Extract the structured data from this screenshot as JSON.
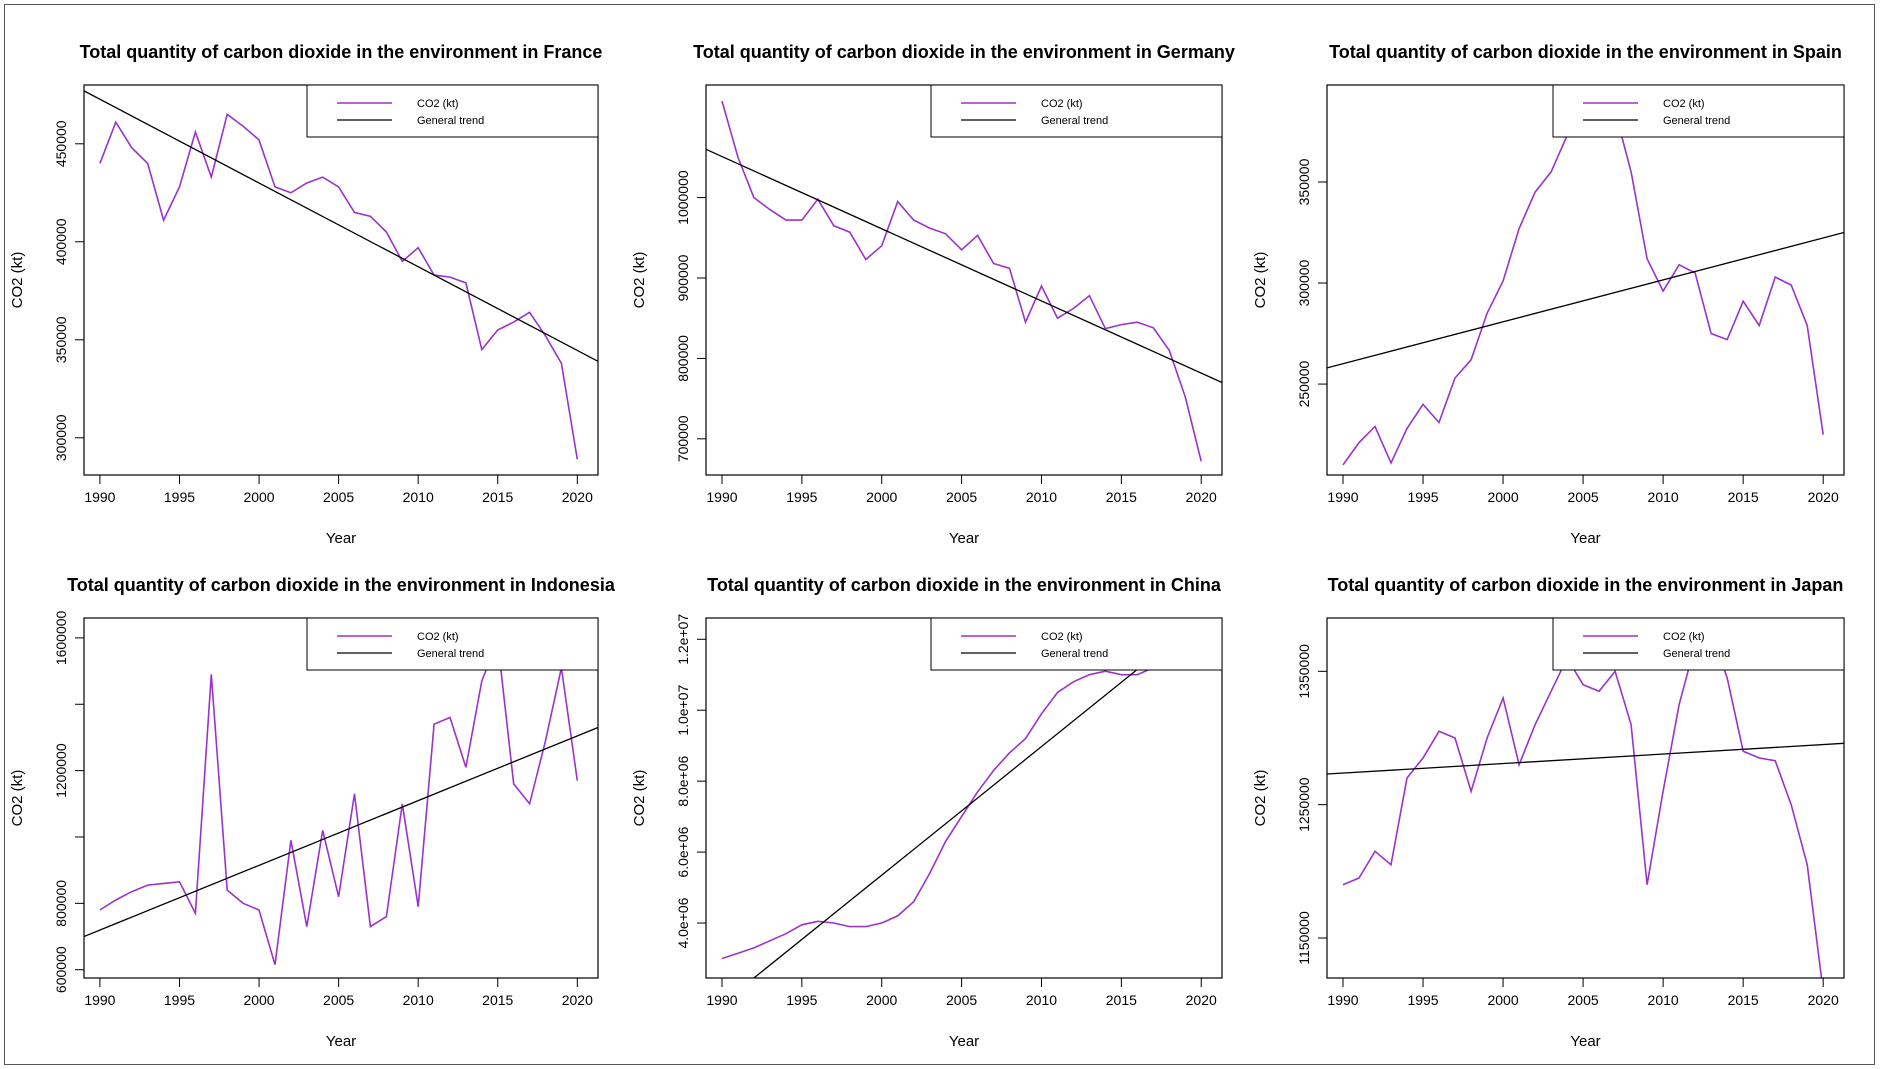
{
  "colors": {
    "series": "#9933CC",
    "trend": "#000000"
  },
  "chart_data": [
    {
      "type": "line",
      "title": "Total quantity of carbon dioxide in the environment in France",
      "xlabel": "Year",
      "ylabel": "CO2 (kt)",
      "xlim": [
        1989,
        2021.3
      ],
      "ylim": [
        281000,
        480000
      ],
      "xticks": [
        1990,
        1995,
        2000,
        2005,
        2010,
        2015,
        2020
      ],
      "yticks": [
        300000,
        350000,
        400000,
        450000
      ],
      "ytick_labels": [
        "300000",
        "350000",
        "400000",
        "450000"
      ],
      "legend": {
        "position": "top-right",
        "entries": [
          "CO2 (kt)",
          "General trend"
        ]
      },
      "x": [
        1990,
        1991,
        1992,
        1993,
        1994,
        1995,
        1996,
        1997,
        1998,
        1999,
        2000,
        2001,
        2002,
        2003,
        2004,
        2005,
        2006,
        2007,
        2008,
        2009,
        2010,
        2011,
        2012,
        2013,
        2014,
        2015,
        2016,
        2017,
        2018,
        2019,
        2020
      ],
      "series": [
        {
          "name": "CO2 (kt)",
          "values": [
            440000,
            461000,
            448000,
            440000,
            411000,
            428000,
            456000,
            433000,
            465000,
            459000,
            452000,
            428000,
            425000,
            430000,
            433000,
            428000,
            415000,
            413000,
            405000,
            390000,
            397000,
            383000,
            382000,
            379000,
            345000,
            355000,
            359000,
            364000,
            352000,
            338000,
            289000
          ]
        }
      ],
      "trend": {
        "name": "General trend",
        "x": [
          1989,
          2021.3
        ],
        "y": [
          477000,
          339000
        ]
      }
    },
    {
      "type": "line",
      "title": "Total quantity of carbon dioxide in the environment in Germany",
      "xlabel": "Year",
      "ylabel": "CO2 (kt)",
      "xlim": [
        1989,
        2021.3
      ],
      "ylim": [
        655000,
        1140000
      ],
      "xticks": [
        1990,
        1995,
        2000,
        2005,
        2010,
        2015,
        2020
      ],
      "yticks": [
        700000,
        800000,
        900000,
        1000000
      ],
      "ytick_labels": [
        "700000",
        "800000",
        "900000",
        "1000000"
      ],
      "legend": {
        "position": "top-right",
        "entries": [
          "CO2 (kt)",
          "General trend"
        ]
      },
      "x": [
        1990,
        1991,
        1992,
        1993,
        1994,
        1995,
        1996,
        1997,
        1998,
        1999,
        2000,
        2001,
        2002,
        2003,
        2004,
        2005,
        2006,
        2007,
        2008,
        2009,
        2010,
        2011,
        2012,
        2013,
        2014,
        2015,
        2016,
        2017,
        2018,
        2019,
        2020
      ],
      "series": [
        {
          "name": "CO2 (kt)",
          "values": [
            1120000,
            1050000,
            1000000,
            985000,
            972000,
            972000,
            998000,
            965000,
            957000,
            923000,
            940000,
            995000,
            972000,
            962000,
            955000,
            935000,
            953000,
            918000,
            912000,
            845000,
            890000,
            850000,
            862000,
            878000,
            837000,
            842000,
            845000,
            838000,
            810000,
            752000,
            672000
          ]
        }
      ],
      "trend": {
        "name": "General trend",
        "x": [
          1989,
          2021.3
        ],
        "y": [
          1060000,
          770000
        ]
      }
    },
    {
      "type": "line",
      "title": "Total quantity of carbon dioxide in the environment in Spain",
      "xlabel": "Year",
      "ylabel": "CO2 (kt)",
      "xlim": [
        1989,
        2021.3
      ],
      "ylim": [
        205000,
        398000
      ],
      "xticks": [
        1990,
        1995,
        2000,
        2005,
        2010,
        2015,
        2020
      ],
      "yticks": [
        250000,
        300000,
        350000
      ],
      "ytick_labels": [
        "250000",
        "300000",
        "350000"
      ],
      "legend": {
        "position": "top-right",
        "entries": [
          "CO2 (kt)",
          "General trend"
        ]
      },
      "x": [
        1990,
        1991,
        1992,
        1993,
        1994,
        1995,
        1996,
        1997,
        1998,
        1999,
        2000,
        2001,
        2002,
        2003,
        2004,
        2005,
        2006,
        2007,
        2008,
        2009,
        2010,
        2011,
        2012,
        2013,
        2014,
        2015,
        2016,
        2017,
        2018,
        2019,
        2020
      ],
      "series": [
        {
          "name": "CO2 (kt)",
          "values": [
            210000,
            221000,
            229000,
            211000,
            228000,
            240000,
            231000,
            253000,
            262000,
            285000,
            301000,
            327000,
            345000,
            355000,
            373000,
            386000,
            376000,
            385000,
            355000,
            312000,
            296000,
            309000,
            305000,
            275000,
            272000,
            291000,
            279000,
            303000,
            299000,
            279000,
            225000
          ]
        }
      ],
      "trend": {
        "name": "General trend",
        "x": [
          1989,
          2021.3
        ],
        "y": [
          258000,
          325000
        ]
      }
    },
    {
      "type": "line",
      "title": "Total quantity of carbon dioxide in the environment in Indonesia",
      "xlabel": "Year",
      "ylabel": "CO2 (kt)",
      "xlim": [
        1989,
        2021.3
      ],
      "ylim": [
        575000,
        1660000
      ],
      "xticks": [
        1990,
        1995,
        2000,
        2005,
        2010,
        2015,
        2020
      ],
      "yticks": [
        600000,
        800000,
        1000000,
        1200000,
        1400000,
        1600000
      ],
      "ytick_labels": [
        "600000",
        "800000",
        "",
        "1200000",
        "",
        "1600000"
      ],
      "legend": {
        "position": "top-right",
        "entries": [
          "CO2 (kt)",
          "General trend"
        ]
      },
      "x": [
        1990,
        1991,
        1992,
        1993,
        1994,
        1995,
        1996,
        1997,
        1998,
        1999,
        2000,
        2001,
        2002,
        2003,
        2004,
        2005,
        2006,
        2007,
        2008,
        2009,
        2010,
        2011,
        2012,
        2013,
        2014,
        2015,
        2016,
        2017,
        2018,
        2019,
        2020
      ],
      "series": [
        {
          "name": "CO2 (kt)",
          "values": [
            780000,
            810000,
            835000,
            855000,
            860000,
            865000,
            770000,
            1490000,
            840000,
            800000,
            780000,
            615000,
            990000,
            730000,
            1020000,
            820000,
            1130000,
            730000,
            760000,
            1100000,
            790000,
            1340000,
            1360000,
            1210000,
            1470000,
            1590000,
            1160000,
            1100000,
            1290000,
            1510000,
            1170000
          ]
        }
      ],
      "trend": {
        "name": "General trend",
        "x": [
          1989,
          2021.3
        ],
        "y": [
          700000,
          1330000
        ]
      }
    },
    {
      "type": "line",
      "title": "Total quantity of carbon dioxide in the environment in China",
      "xlabel": "Year",
      "ylabel": "CO2 (kt)",
      "xlim": [
        1989,
        2021.3
      ],
      "ylim": [
        2450000,
        12600000
      ],
      "xticks": [
        1990,
        1995,
        2000,
        2005,
        2010,
        2015,
        2020
      ],
      "yticks": [
        4000000,
        6000000,
        8000000,
        10000000,
        12000000
      ],
      "ytick_labels": [
        "4.0e+06",
        "6.0e+06",
        "8.0e+06",
        "1.0e+07",
        "1.2e+07"
      ],
      "legend": {
        "position": "top-right",
        "entries": [
          "CO2 (kt)",
          "General trend"
        ]
      },
      "x": [
        1990,
        1991,
        1992,
        1993,
        1994,
        1995,
        1996,
        1997,
        1998,
        1999,
        2000,
        2001,
        2002,
        2003,
        2004,
        2005,
        2006,
        2007,
        2008,
        2009,
        2010,
        2011,
        2012,
        2013,
        2014,
        2015,
        2016,
        2017,
        2018,
        2019,
        2020
      ],
      "series": [
        {
          "name": "CO2 (kt)",
          "values": [
            3000000,
            3150000,
            3300000,
            3500000,
            3700000,
            3950000,
            4050000,
            4000000,
            3900000,
            3900000,
            4000000,
            4200000,
            4600000,
            5400000,
            6300000,
            7000000,
            7700000,
            8300000,
            8800000,
            9200000,
            9900000,
            10500000,
            10800000,
            11000000,
            11100000,
            11000000,
            11000000,
            11200000,
            11500000,
            11800000,
            12000000
          ]
        }
      ],
      "trend": {
        "name": "General trend",
        "x": [
          1992,
          2020
        ],
        "y": [
          2450000,
          12600000
        ]
      }
    },
    {
      "type": "line",
      "title": "Total quantity of carbon dioxide in the environment in Japan",
      "xlabel": "Year",
      "ylabel": "CO2 (kt)",
      "xlim": [
        1989,
        2021.3
      ],
      "ylim": [
        1120000,
        1390000
      ],
      "xticks": [
        1990,
        1995,
        2000,
        2005,
        2010,
        2015,
        2020
      ],
      "yticks": [
        1150000,
        1250000,
        1350000
      ],
      "ytick_labels": [
        "1150000",
        "1250000",
        "1350000"
      ],
      "legend": {
        "position": "top-right",
        "entries": [
          "CO2 (kt)",
          "General trend"
        ]
      },
      "x": [
        1990,
        1991,
        1992,
        1993,
        1994,
        1995,
        1996,
        1997,
        1998,
        1999,
        2000,
        2001,
        2002,
        2003,
        2004,
        2005,
        2006,
        2007,
        2008,
        2009,
        2010,
        2011,
        2012,
        2013,
        2014,
        2015,
        2016,
        2017,
        2018,
        2019,
        2020
      ],
      "series": [
        {
          "name": "CO2 (kt)",
          "values": [
            1190000,
            1195000,
            1215000,
            1205000,
            1270000,
            1285000,
            1305000,
            1300000,
            1260000,
            1300000,
            1330000,
            1280000,
            1310000,
            1335000,
            1360000,
            1340000,
            1335000,
            1350000,
            1310000,
            1190000,
            1260000,
            1325000,
            1370000,
            1380000,
            1345000,
            1290000,
            1285000,
            1283000,
            1250000,
            1205000,
            1110000
          ]
        }
      ],
      "trend": {
        "name": "General trend",
        "x": [
          1989,
          2021.3
        ],
        "y": [
          1273000,
          1296000
        ]
      }
    }
  ]
}
